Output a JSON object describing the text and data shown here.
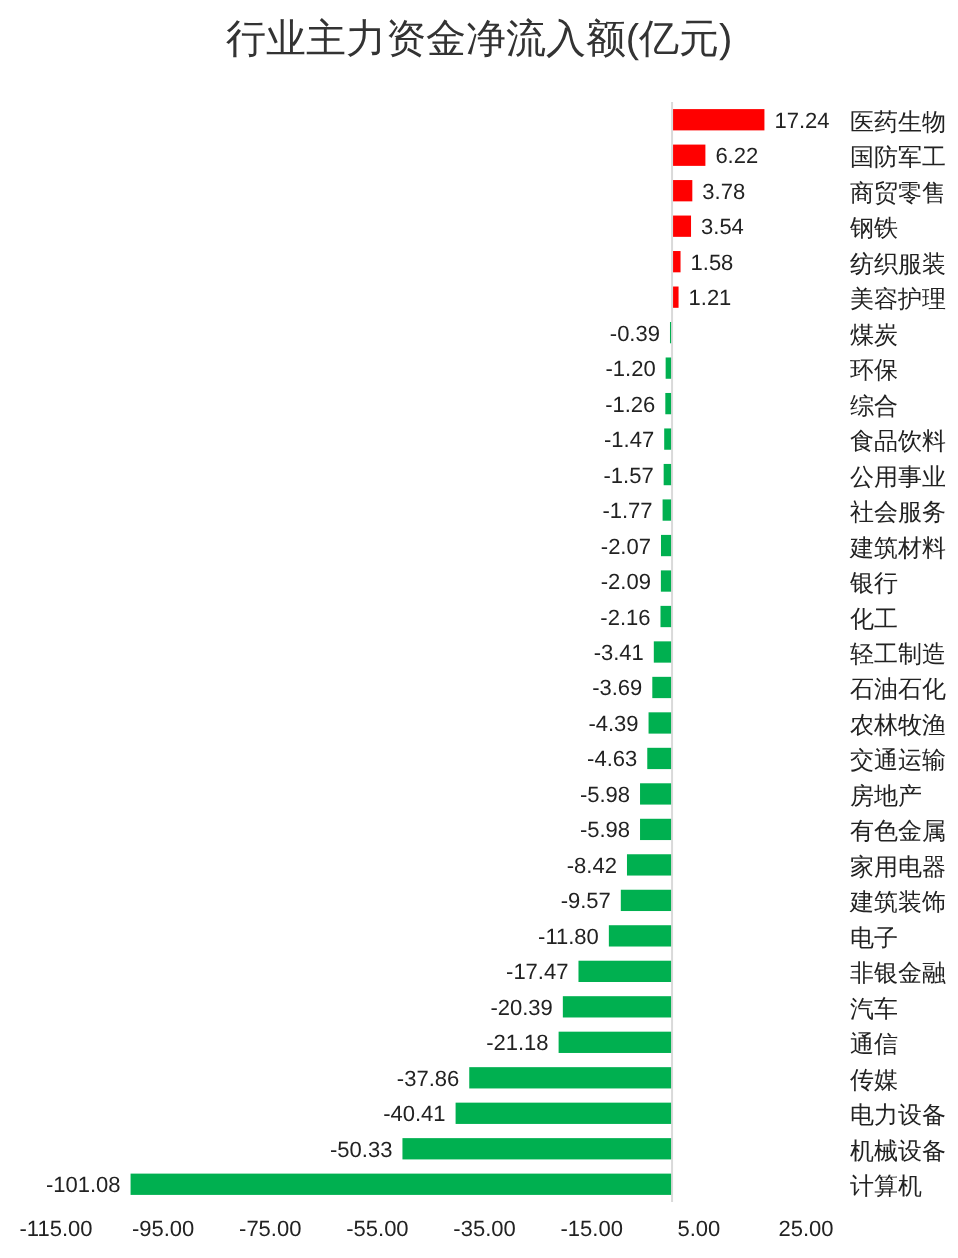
{
  "chart_data": {
    "type": "bar",
    "orientation": "horizontal",
    "title": "行业主力资金净流入额(亿元)",
    "categories": [
      "医药生物",
      "国防军工",
      "商贸零售",
      "钢铁",
      "纺织服装",
      "美容护理",
      "煤炭",
      "环保",
      "综合",
      "食品饮料",
      "公用事业",
      "社会服务",
      "建筑材料",
      "银行",
      "化工",
      "轻工制造",
      "石油石化",
      "农林牧渔",
      "交通运输",
      "房地产",
      "有色金属",
      "家用电器",
      "建筑装饰",
      "电子",
      "非银金融",
      "汽车",
      "通信",
      "传媒",
      "电力设备",
      "机械设备",
      "计算机"
    ],
    "values": [
      17.24,
      6.22,
      3.78,
      3.54,
      1.58,
      1.21,
      -0.39,
      -1.2,
      -1.26,
      -1.47,
      -1.57,
      -1.77,
      -2.07,
      -2.09,
      -2.16,
      -3.41,
      -3.69,
      -4.39,
      -4.63,
      -5.98,
      -5.98,
      -8.42,
      -9.57,
      -11.8,
      -17.47,
      -20.39,
      -21.18,
      -37.86,
      -40.41,
      -50.33,
      -101.08
    ],
    "value_labels": [
      "17.24",
      "6.22",
      "3.78",
      "3.54",
      "1.58",
      "1.21",
      "-0.39",
      "-1.20",
      "-1.26",
      "-1.47",
      "-1.57",
      "-1.77",
      "-2.07",
      "-2.09",
      "-2.16",
      "-3.41",
      "-3.69",
      "-4.39",
      "-4.63",
      "-5.98",
      "-5.98",
      "-8.42",
      "-9.57",
      "-11.80",
      "-17.47",
      "-20.39",
      "-21.18",
      "-37.86",
      "-40.41",
      "-50.33",
      "-101.08"
    ],
    "colors": [
      "#ff0000",
      "#ff0000",
      "#ff0000",
      "#ff0000",
      "#ff0000",
      "#ff0000",
      "#00b050",
      "#00b050",
      "#00b050",
      "#00b050",
      "#00b050",
      "#00b050",
      "#00b050",
      "#00b050",
      "#00b050",
      "#00b050",
      "#00b050",
      "#00b050",
      "#00b050",
      "#00b050",
      "#00b050",
      "#00b050",
      "#00b050",
      "#00b050",
      "#00b050",
      "#00b050",
      "#00b050",
      "#00b050",
      "#00b050",
      "#00b050",
      "#00b050"
    ],
    "xlim": [
      -115,
      25
    ],
    "xticks": [
      {
        "value": -115,
        "label": "-115.00"
      },
      {
        "value": -95,
        "label": "-95.00"
      },
      {
        "value": -75,
        "label": "-75.00"
      },
      {
        "value": -55,
        "label": "-55.00"
      },
      {
        "value": -35,
        "label": "-35.00"
      },
      {
        "value": -15,
        "label": "-15.00"
      },
      {
        "value": 5,
        "label": "5.00"
      },
      {
        "value": 25,
        "label": "25.00"
      }
    ],
    "grid": false
  }
}
